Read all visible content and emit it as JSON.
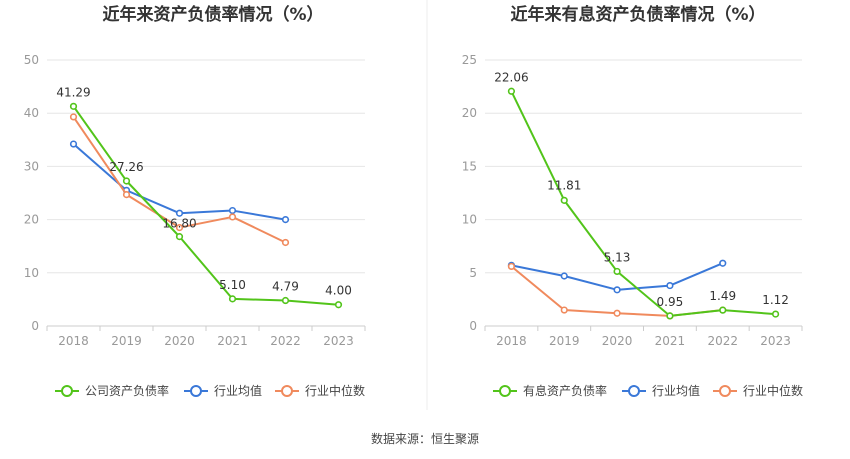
{
  "chart_data": [
    {
      "type": "line",
      "title": "近年来资产负债率情况（%）",
      "categories": [
        "2018",
        "2019",
        "2020",
        "2021",
        "2022",
        "2023"
      ],
      "ylim": [
        0,
        50
      ],
      "yticks": [
        0,
        10,
        20,
        30,
        40,
        50
      ],
      "grid": true,
      "legend_position": "bottom",
      "series": [
        {
          "name": "公司资产负债率",
          "color": "#52c41a",
          "values": [
            41.29,
            27.26,
            16.8,
            5.1,
            4.79,
            4.0
          ],
          "labels": [
            "41.29",
            "27.26",
            "16.80",
            "5.10",
            "4.79",
            "4.00"
          ]
        },
        {
          "name": "行业均值",
          "color": "#3a78d8",
          "values": [
            34.2,
            25.5,
            21.2,
            21.7,
            20.0,
            null
          ]
        },
        {
          "name": "行业中位数",
          "color": "#f08a5d",
          "values": [
            39.3,
            24.7,
            18.5,
            20.5,
            15.7,
            null
          ]
        }
      ]
    },
    {
      "type": "line",
      "title": "近年来有息资产负债率情况（%）",
      "categories": [
        "2018",
        "2019",
        "2020",
        "2021",
        "2022",
        "2023"
      ],
      "ylim": [
        0,
        25
      ],
      "yticks": [
        0,
        5,
        10,
        15,
        20,
        25
      ],
      "grid": true,
      "legend_position": "bottom",
      "series": [
        {
          "name": "有息资产负债率",
          "color": "#52c41a",
          "values": [
            22.06,
            11.81,
            5.13,
            0.95,
            1.49,
            1.12
          ],
          "labels": [
            "22.06",
            "11.81",
            "5.13",
            "0.95",
            "1.49",
            "1.12"
          ]
        },
        {
          "name": "行业均值",
          "color": "#3a78d8",
          "values": [
            5.7,
            4.7,
            3.4,
            3.8,
            5.9,
            null
          ]
        },
        {
          "name": "行业中位数",
          "color": "#f08a5d",
          "values": [
            5.6,
            1.5,
            1.2,
            0.95,
            1.5,
            null
          ]
        }
      ]
    }
  ],
  "source": "数据来源：恒生聚源"
}
